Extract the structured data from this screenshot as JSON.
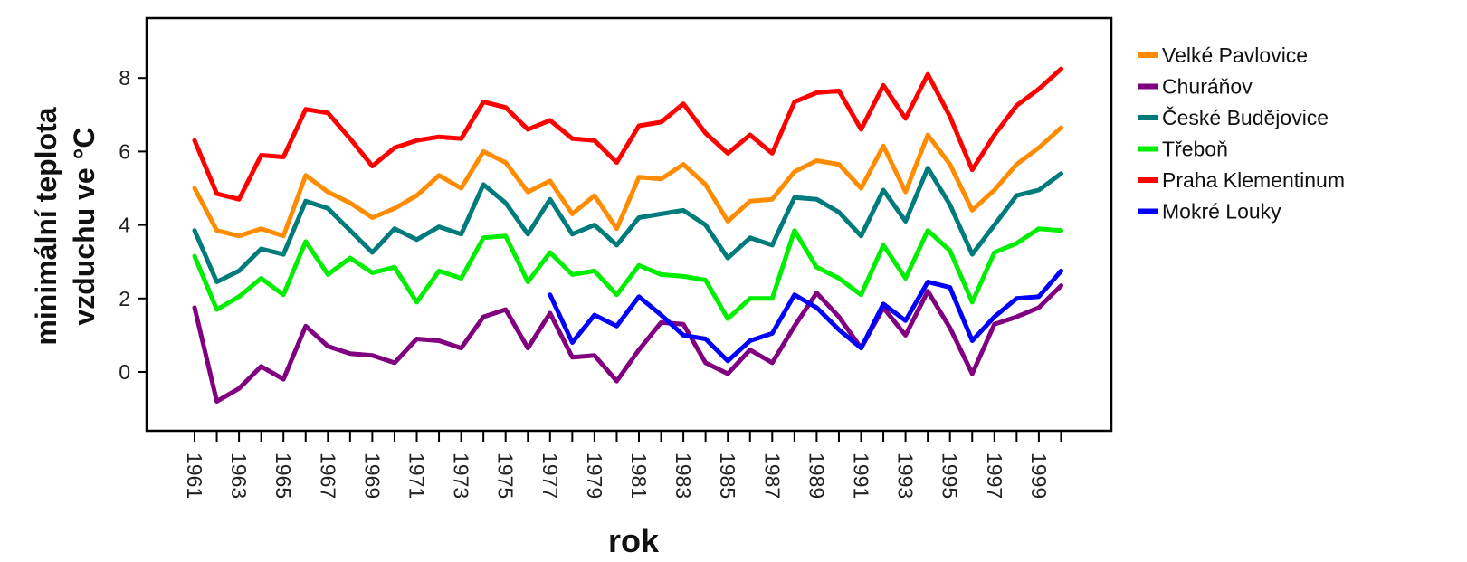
{
  "chart_data": {
    "type": "line",
    "title": "",
    "xlabel": "rok",
    "ylabel": [
      "minimální teplota",
      "vzduchu ve °C"
    ],
    "x": [
      1961,
      1962,
      1963,
      1964,
      1965,
      1966,
      1967,
      1968,
      1969,
      1970,
      1971,
      1972,
      1973,
      1974,
      1975,
      1976,
      1977,
      1978,
      1979,
      1980,
      1981,
      1982,
      1983,
      1984,
      1985,
      1986,
      1987,
      1988,
      1989,
      1990,
      1991,
      1992,
      1993,
      1994,
      1995,
      1996,
      1997,
      1998,
      1999,
      2000
    ],
    "x_tick_labels": [
      "1961",
      "1963",
      "1965",
      "1967",
      "1969",
      "1971",
      "1973",
      "1975",
      "1977",
      "1979",
      "1981",
      "1983",
      "1985",
      "1987",
      "1989",
      "1991",
      "1993",
      "1995",
      "1997",
      "1999"
    ],
    "y_ticks": [
      0,
      2,
      4,
      6,
      8
    ],
    "xlim": [
      1961,
      2000
    ],
    "ylim": [
      -1.5,
      9.5
    ],
    "grid": false,
    "legend_position": "right",
    "series": [
      {
        "name": "Velké Pavlovice",
        "color": "#FF8C00",
        "values": [
          5.0,
          3.85,
          3.7,
          3.9,
          3.7,
          5.35,
          4.9,
          4.6,
          4.2,
          4.45,
          4.8,
          5.35,
          5.0,
          6.0,
          5.7,
          4.9,
          5.2,
          4.3,
          4.8,
          3.9,
          5.3,
          5.25,
          5.65,
          5.1,
          4.1,
          4.65,
          4.7,
          5.45,
          5.75,
          5.65,
          5.0,
          6.15,
          4.9,
          6.45,
          5.65,
          4.4,
          4.95,
          5.65,
          6.1,
          6.65
        ]
      },
      {
        "name": "Churáňov",
        "color": "#800080",
        "values": [
          1.75,
          -0.8,
          -0.45,
          0.15,
          -0.2,
          1.25,
          0.7,
          0.5,
          0.45,
          0.25,
          0.9,
          0.85,
          0.65,
          1.5,
          1.7,
          0.65,
          1.6,
          0.4,
          0.45,
          -0.25,
          0.6,
          1.35,
          1.3,
          0.25,
          -0.05,
          0.6,
          0.25,
          1.25,
          2.15,
          1.5,
          0.65,
          1.75,
          1.0,
          2.2,
          1.2,
          -0.05,
          1.3,
          1.5,
          1.75,
          2.35
        ]
      },
      {
        "name": "České Budějovice",
        "color": "#007B7B",
        "values": [
          3.85,
          2.45,
          2.75,
          3.35,
          3.2,
          4.65,
          4.45,
          3.85,
          3.25,
          3.9,
          3.6,
          3.95,
          3.75,
          5.1,
          4.6,
          3.75,
          4.7,
          3.75,
          4.0,
          3.45,
          4.2,
          4.3,
          4.4,
          4.0,
          3.1,
          3.65,
          3.45,
          4.75,
          4.7,
          4.35,
          3.7,
          4.95,
          4.1,
          5.55,
          4.55,
          3.2,
          4.0,
          4.8,
          4.95,
          5.4
        ]
      },
      {
        "name": "Třeboň",
        "color": "#00EE00",
        "values": [
          3.15,
          1.7,
          2.05,
          2.55,
          2.1,
          3.55,
          2.65,
          3.1,
          2.7,
          2.85,
          1.9,
          2.75,
          2.55,
          3.65,
          3.7,
          2.45,
          3.25,
          2.65,
          2.75,
          2.1,
          2.9,
          2.65,
          2.6,
          2.5,
          1.45,
          2.0,
          2.0,
          3.85,
          2.85,
          2.55,
          2.1,
          3.45,
          2.55,
          3.85,
          3.3,
          1.9,
          3.25,
          3.5,
          3.9,
          3.85
        ]
      },
      {
        "name": "Praha Klementinum",
        "color": "#FF0000",
        "values": [
          6.3,
          4.85,
          4.7,
          5.9,
          5.85,
          7.15,
          7.05,
          6.35,
          5.6,
          6.1,
          6.3,
          6.4,
          6.35,
          7.35,
          7.2,
          6.6,
          6.85,
          6.35,
          6.3,
          5.7,
          6.7,
          6.8,
          7.3,
          6.5,
          5.95,
          6.45,
          5.95,
          7.35,
          7.6,
          7.65,
          6.6,
          7.8,
          6.9,
          8.1,
          6.95,
          5.5,
          6.45,
          7.25,
          7.7,
          8.25
        ]
      },
      {
        "name": "Mokré Louky",
        "color": "#0000FF",
        "values": [
          null,
          null,
          null,
          null,
          null,
          null,
          null,
          null,
          null,
          null,
          null,
          null,
          null,
          null,
          null,
          null,
          2.1,
          0.8,
          1.55,
          1.25,
          2.05,
          1.55,
          1.0,
          0.9,
          0.3,
          0.85,
          1.05,
          2.1,
          1.75,
          1.15,
          0.65,
          1.85,
          1.4,
          2.45,
          2.3,
          0.85,
          1.5,
          2.0,
          2.05,
          2.75
        ]
      }
    ]
  }
}
